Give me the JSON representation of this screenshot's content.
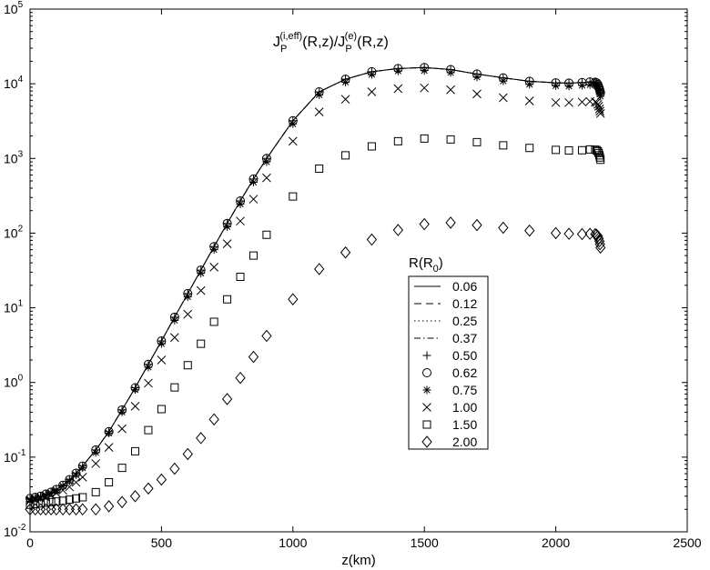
{
  "chart_data": {
    "type": "line",
    "title_main": "J",
    "title_sub1": "P",
    "title_sup1": "(i,eff)",
    "title_mid": "(R,z)/J",
    "title_sub2": "P",
    "title_sup2": "(e)",
    "title_end": "(R,z)",
    "xlabel": "z(km)",
    "ylabel": "",
    "xlim": [
      0,
      2500
    ],
    "ylim_log10": [
      -2,
      5
    ],
    "yscale": "log",
    "grid": false,
    "xticks": [
      "0",
      "500",
      "1000",
      "1500",
      "2000",
      "2500"
    ],
    "yticks": [
      {
        "base": "10",
        "exp": "-2"
      },
      {
        "base": "10",
        "exp": "-1"
      },
      {
        "base": "10",
        "exp": "0"
      },
      {
        "base": "10",
        "exp": "1"
      },
      {
        "base": "10",
        "exp": "2"
      },
      {
        "base": "10",
        "exp": "3"
      },
      {
        "base": "10",
        "exp": "4"
      },
      {
        "base": "10",
        "exp": "5"
      }
    ],
    "legend": {
      "title_main": "R(R",
      "title_sub": "0",
      "title_end": ")",
      "placement": "center-right"
    },
    "x": [
      0,
      20,
      40,
      60,
      80,
      100,
      125,
      150,
      175,
      200,
      250,
      300,
      350,
      400,
      450,
      500,
      550,
      600,
      650,
      700,
      750,
      800,
      850,
      900,
      1000,
      1100,
      1200,
      1300,
      1400,
      1500,
      1600,
      1700,
      1800,
      1900,
      2000,
      2050,
      2100,
      2130,
      2150,
      2155,
      2160,
      2163,
      2166,
      2168,
      2170
    ],
    "series": [
      {
        "name": "0.06",
        "style": "solid",
        "values": [
          0.028,
          0.029,
          0.03,
          0.032,
          0.034,
          0.037,
          0.042,
          0.05,
          0.061,
          0.076,
          0.125,
          0.22,
          0.43,
          0.85,
          1.75,
          3.6,
          7.5,
          15.5,
          32,
          66,
          135,
          270,
          530,
          1000,
          3200,
          7800,
          11500,
          14500,
          16000,
          16500,
          15500,
          13500,
          12000,
          10800,
          10300,
          10200,
          10400,
          10600,
          10500,
          10300,
          9800,
          9200,
          8600,
          8100,
          7600
        ]
      },
      {
        "name": "0.12",
        "style": "dashed",
        "values": [
          0.028,
          0.029,
          0.03,
          0.032,
          0.034,
          0.037,
          0.042,
          0.05,
          0.061,
          0.076,
          0.125,
          0.22,
          0.43,
          0.85,
          1.75,
          3.6,
          7.5,
          15.5,
          32,
          66,
          135,
          270,
          530,
          1000,
          3200,
          7800,
          11500,
          14500,
          16000,
          16500,
          15500,
          13500,
          12000,
          10800,
          10300,
          10200,
          10400,
          10600,
          10500,
          10300,
          9800,
          9200,
          8600,
          8100,
          7600
        ]
      },
      {
        "name": "0.25",
        "style": "dotted",
        "values": [
          0.028,
          0.029,
          0.03,
          0.032,
          0.034,
          0.037,
          0.042,
          0.05,
          0.061,
          0.076,
          0.125,
          0.22,
          0.43,
          0.85,
          1.75,
          3.6,
          7.5,
          15.5,
          32,
          66,
          135,
          270,
          530,
          1000,
          3200,
          7800,
          11500,
          14500,
          16000,
          16500,
          15500,
          13500,
          12000,
          10800,
          10300,
          10200,
          10400,
          10600,
          10500,
          10300,
          9800,
          9200,
          8600,
          8100,
          7600
        ]
      },
      {
        "name": "0.37",
        "style": "dashdot",
        "values": [
          0.028,
          0.029,
          0.03,
          0.032,
          0.034,
          0.037,
          0.042,
          0.05,
          0.061,
          0.076,
          0.125,
          0.22,
          0.43,
          0.85,
          1.75,
          3.6,
          7.5,
          15.5,
          32,
          66,
          135,
          270,
          530,
          1000,
          3200,
          7800,
          11500,
          14500,
          16000,
          16500,
          15500,
          13500,
          12000,
          10800,
          10300,
          10200,
          10400,
          10600,
          10500,
          10300,
          9800,
          9200,
          8600,
          8100,
          7600
        ]
      },
      {
        "name": "0.50",
        "style": "plus",
        "values": [
          0.028,
          0.029,
          0.03,
          0.032,
          0.034,
          0.037,
          0.042,
          0.05,
          0.061,
          0.076,
          0.125,
          0.22,
          0.43,
          0.85,
          1.75,
          3.6,
          7.5,
          15.5,
          32,
          66,
          135,
          270,
          530,
          1000,
          3200,
          7800,
          11500,
          14500,
          16000,
          16500,
          15500,
          13500,
          12000,
          10800,
          10300,
          10200,
          10400,
          10600,
          10500,
          10300,
          9800,
          9200,
          8600,
          8100,
          7600
        ]
      },
      {
        "name": "0.62",
        "style": "circle",
        "values": [
          0.028,
          0.029,
          0.03,
          0.032,
          0.034,
          0.037,
          0.042,
          0.05,
          0.061,
          0.076,
          0.125,
          0.22,
          0.43,
          0.85,
          1.75,
          3.6,
          7.5,
          15.5,
          32,
          66,
          135,
          270,
          530,
          1000,
          3200,
          7800,
          11500,
          14500,
          16000,
          16500,
          15500,
          13500,
          12000,
          10800,
          10300,
          10200,
          10400,
          10600,
          10500,
          10300,
          9800,
          9200,
          8600,
          8100,
          7600
        ]
      },
      {
        "name": "0.75",
        "style": "asterisk",
        "values": [
          0.027,
          0.028,
          0.029,
          0.031,
          0.033,
          0.036,
          0.041,
          0.048,
          0.058,
          0.072,
          0.115,
          0.21,
          0.4,
          0.8,
          1.6,
          3.3,
          6.8,
          14,
          29,
          60,
          122,
          245,
          480,
          900,
          2900,
          7100,
          10500,
          13300,
          14800,
          15000,
          14100,
          12300,
          10900,
          9800,
          9400,
          9300,
          9500,
          9700,
          9600,
          9400,
          9000,
          8400,
          7800,
          7300,
          6800
        ]
      },
      {
        "name": "1.00",
        "style": "cross",
        "values": [
          0.026,
          0.027,
          0.028,
          0.029,
          0.031,
          0.033,
          0.036,
          0.04,
          0.046,
          0.054,
          0.082,
          0.135,
          0.24,
          0.48,
          0.98,
          2.0,
          4.0,
          8.2,
          17,
          35,
          72,
          145,
          285,
          550,
          1700,
          4200,
          6200,
          7800,
          8600,
          8800,
          8300,
          7300,
          6500,
          5900,
          5600,
          5600,
          5700,
          5800,
          5700,
          5600,
          5300,
          5000,
          4600,
          4300,
          4000
        ]
      },
      {
        "name": "1.50",
        "style": "square",
        "values": [
          0.023,
          0.0235,
          0.024,
          0.0245,
          0.025,
          0.0255,
          0.026,
          0.027,
          0.028,
          0.029,
          0.034,
          0.046,
          0.072,
          0.12,
          0.23,
          0.44,
          0.86,
          1.7,
          3.3,
          6.5,
          13,
          26,
          50,
          95,
          310,
          730,
          1100,
          1450,
          1700,
          1850,
          1800,
          1650,
          1500,
          1380,
          1300,
          1280,
          1290,
          1320,
          1310,
          1290,
          1250,
          1180,
          1100,
          1030,
          960
        ]
      },
      {
        "name": "2.00",
        "style": "diamond",
        "values": [
          0.02,
          0.02,
          0.02,
          0.02,
          0.02,
          0.02,
          0.02,
          0.02,
          0.02,
          0.02,
          0.02,
          0.022,
          0.025,
          0.03,
          0.038,
          0.05,
          0.07,
          0.11,
          0.18,
          0.32,
          0.6,
          1.15,
          2.2,
          4.2,
          13,
          33,
          55,
          82,
          110,
          132,
          138,
          128,
          118,
          108,
          100,
          98,
          97,
          98,
          97,
          95,
          91,
          85,
          78,
          71,
          64
        ]
      }
    ]
  }
}
